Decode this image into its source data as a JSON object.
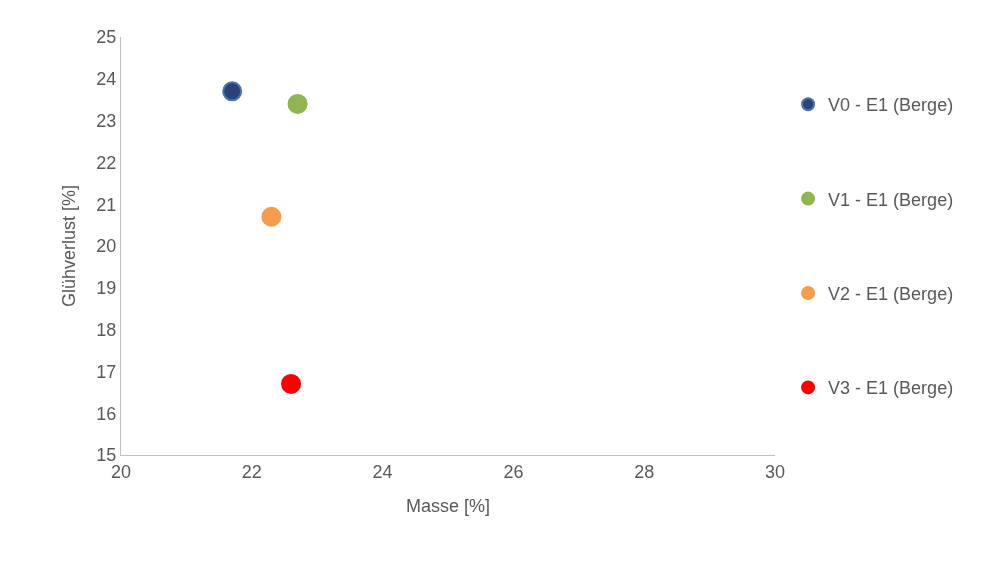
{
  "chart_data": {
    "type": "scatter",
    "xlabel": "Masse [%]",
    "ylabel": "Glühverlust [%]",
    "xlim": [
      20,
      30
    ],
    "xticks": [
      20,
      22,
      24,
      26,
      28,
      30
    ],
    "ylim": [
      15,
      25
    ],
    "yticks": [
      15,
      16,
      17,
      18,
      19,
      20,
      21,
      22,
      23,
      24,
      25
    ],
    "grid": false,
    "legend": "right",
    "marker": "circle",
    "series": [
      {
        "name": "V0 - E1 (Berge)",
        "color": "#264478",
        "x": [
          21.7
        ],
        "values": [
          23.7
        ]
      },
      {
        "name": "V1 - E1 (Berge)",
        "color": "#8fb650",
        "x": [
          22.7
        ],
        "values": [
          23.4
        ]
      },
      {
        "name": "V2 - E1 (Berge)",
        "color": "#f59d4d",
        "x": [
          22.3
        ],
        "values": [
          20.7
        ]
      },
      {
        "name": "V3 - E1 (Berge)",
        "color": "#ff0000",
        "x": [
          22.6
        ],
        "values": [
          16.7
        ]
      }
    ]
  }
}
